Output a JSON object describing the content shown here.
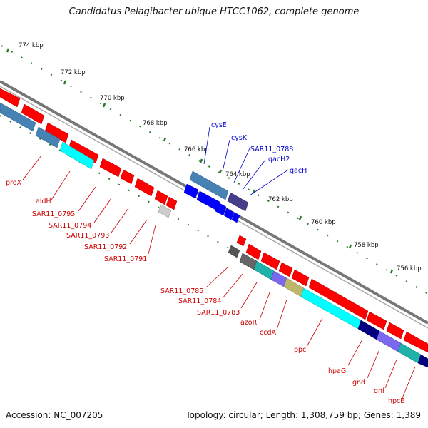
{
  "title": "Candidatus Pelagibacter ubique HTCC1062, complete genome",
  "accession": "Accession: NC_007205",
  "summary": "Topology: circular; Length: 1,308,759 bp; Genes: 1,389",
  "tick_labels": [
    "774 kbp",
    "772 kbp",
    "770 kbp",
    "768 kbp",
    "766 kbp",
    "764 kbp",
    "762 kbp",
    "760 kbp",
    "758 kbp",
    "756 kbp"
  ],
  "gene_labels": {
    "reverse_strand": [
      "proX",
      "aldH",
      "SAR11_0795",
      "SAR11_0794",
      "SAR11_0793",
      "SAR11_0792",
      "SAR11_0791",
      "SAR11_0785",
      "SAR11_0784",
      "SAR11_0783",
      "azoR",
      "ccdA",
      "ppc",
      "hpaG",
      "gnd",
      "gnl",
      "hpcE"
    ],
    "forward_strand": [
      "cysE",
      "cysK",
      "SAR11_0788",
      "qacH2",
      "qacH"
    ]
  },
  "colors": {
    "backbone": "#777777",
    "gene_red": "#ff0000",
    "gene_blue": "#0000ff",
    "gene_steelblue": "#4682b4",
    "gene_cyan": "#00ffff",
    "gene_navy": "#000080",
    "gene_slateblue": "#6a5acd",
    "gene_khaki": "#bdb76b",
    "gene_gray": "#808080",
    "label_red": "#cc0000",
    "label_blue": "#0000cc",
    "tick_green": "#2a7a2a"
  }
}
